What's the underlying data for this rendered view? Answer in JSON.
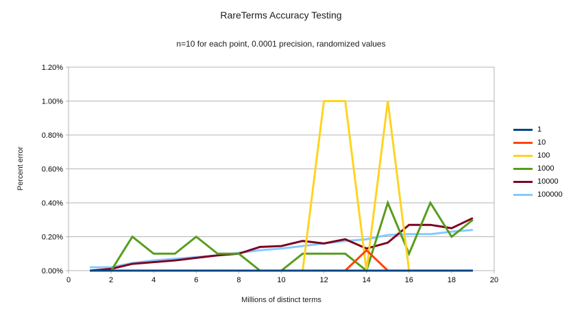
{
  "chart_data": {
    "type": "line",
    "title": "RareTerms Accuracy Testing",
    "subtitle": "n=10 for each point, 0.0001 precision, randomized values",
    "xlabel": "Millions of distinct terms",
    "ylabel": "Percent error",
    "xlim": [
      0,
      20
    ],
    "ylim": [
      0,
      1.2
    ],
    "x_ticks": [
      "0",
      "2",
      "4",
      "6",
      "8",
      "10",
      "12",
      "14",
      "16",
      "18",
      "20"
    ],
    "y_ticks": [
      "0.00%",
      "0.20%",
      "0.40%",
      "0.60%",
      "0.80%",
      "1.00%",
      "1.20%"
    ],
    "y_tick_step": 0.2,
    "grid": "horizontal",
    "legend_position": "right",
    "x": [
      1,
      2,
      3,
      4,
      5,
      6,
      7,
      8,
      9,
      10,
      11,
      12,
      13,
      14,
      15,
      16,
      17,
      18,
      19
    ],
    "series": [
      {
        "name": "1",
        "color": "#004586",
        "values": [
          0,
          0,
          0,
          0,
          0,
          0,
          0,
          0,
          0,
          0,
          0,
          0,
          0,
          0,
          0,
          0,
          0,
          0,
          0
        ]
      },
      {
        "name": "10",
        "color": "#ff420e",
        "values": [
          0,
          0,
          0,
          0,
          0,
          0,
          0,
          0,
          0,
          0,
          0,
          0,
          0,
          0.12,
          0,
          0,
          0,
          0,
          0
        ]
      },
      {
        "name": "100",
        "color": "#ffd320",
        "values": [
          0,
          0,
          0,
          0,
          0,
          0,
          0,
          0,
          0,
          0,
          0,
          1.0,
          1.0,
          0,
          1.0,
          0,
          0,
          0,
          0
        ]
      },
      {
        "name": "1000",
        "color": "#579d1c",
        "values": [
          0,
          0,
          0.2,
          0.1,
          0.1,
          0.2,
          0.1,
          0.1,
          0,
          0,
          0.1,
          0.1,
          0.1,
          0,
          0.4,
          0.1,
          0.4,
          0.2,
          0.3
        ]
      },
      {
        "name": "10000",
        "color": "#7e0021",
        "values": [
          0,
          0.01,
          0.04,
          0.05,
          0.06,
          0.075,
          0.09,
          0.1,
          0.14,
          0.145,
          0.175,
          0.16,
          0.185,
          0.13,
          0.165,
          0.27,
          0.27,
          0.25,
          0.31
        ]
      },
      {
        "name": "100000",
        "color": "#83caff",
        "values": [
          0.02,
          0.02,
          0.045,
          0.06,
          0.07,
          0.08,
          0.09,
          0.105,
          0.12,
          0.13,
          0.145,
          0.16,
          0.175,
          0.185,
          0.21,
          0.215,
          0.215,
          0.23,
          0.24
        ]
      }
    ]
  },
  "colors": {
    "grid": "#b3b3b3",
    "axis": "#b3b3b3",
    "tick_text": "#000000",
    "background": "#ffffff"
  }
}
